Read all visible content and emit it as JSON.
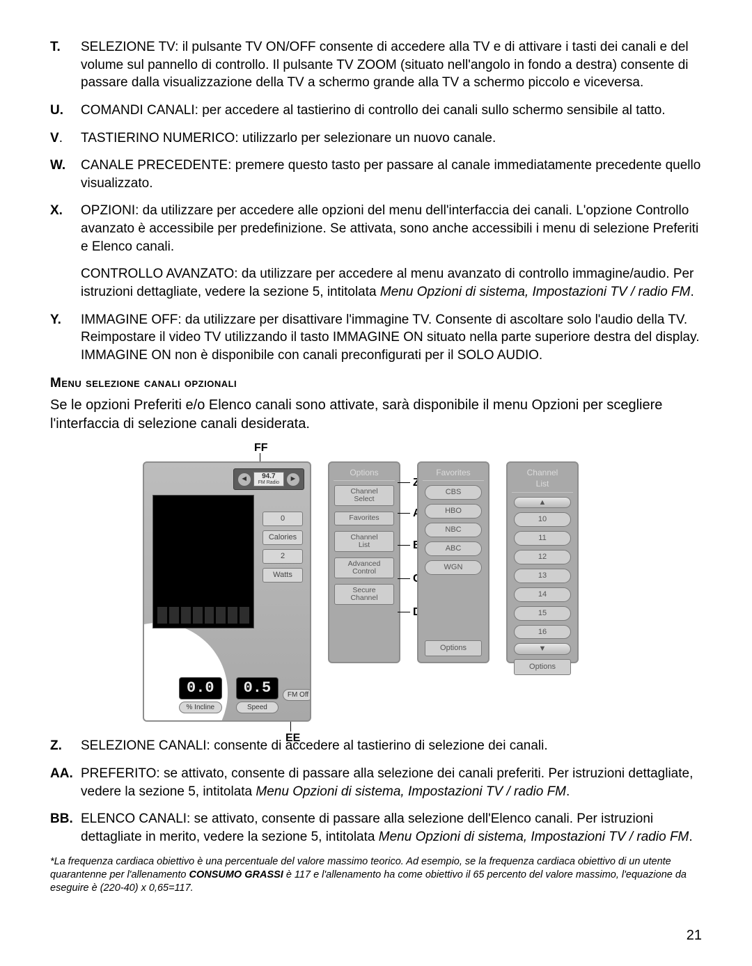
{
  "list_top": [
    {
      "letter": "T.",
      "paras": [
        {
          "t": "SELEZIONE TV: il pulsante TV ON/OFF consente di accedere alla TV e di attivare i tasti dei canali e del volume sul pannello di controllo. Il pulsante TV ZOOM (situato nell'angolo in fondo a destra) consente di passare dalla visualizzazione della TV a schermo grande alla TV a schermo piccolo e viceversa."
        }
      ]
    },
    {
      "letter": "U.",
      "paras": [
        {
          "t": "COMANDI CANALI: per accedere al tastierino di controllo dei canali sullo schermo sensibile al tatto."
        }
      ]
    },
    {
      "letter": "V.",
      "normal_dot": true,
      "paras": [
        {
          "t": "TASTIERINO NUMERICO: utilizzarlo per selezionare un nuovo canale."
        }
      ]
    },
    {
      "letter": "W.",
      "paras": [
        {
          "t": "CANALE PRECEDENTE: premere questo tasto per passare al canale immediatamente precedente quello visualizzato."
        }
      ]
    },
    {
      "letter": "X.",
      "paras": [
        {
          "t": "OPZIONI: da utilizzare per accedere alle opzioni del menu dell'interfaccia dei canali. L'opzione Controllo avanzato è accessibile per predefinizione. Se attivata, sono anche accessibili i menu di selezione Preferiti e Elenco canali."
        },
        {
          "t": "CONTROLLO AVANZATO: da utilizzare per accedere al menu avanzato di controllo immagine/audio. Per istruzioni dettagliate, vedere la sezione 5, intitolata ",
          "it": "Menu Opzioni di sistema, Impostazioni TV / radio FM",
          "tail": "."
        }
      ]
    },
    {
      "letter": "Y.",
      "paras": [
        {
          "t": "IMMAGINE OFF: da utilizzare per disattivare l'immagine TV. Consente di ascoltare solo l'audio della TV. Reimpostare il video TV utilizzando il tasto IMMAGINE ON situato nella parte superiore destra del display. IMMAGINE ON non è disponibile con canali preconfigurati per il SOLO AUDIO."
        }
      ]
    }
  ],
  "heading": "Menu selezione canali opzionali",
  "intro": "Se le opzioni Preferiti e/o Elenco canali sono attivate, sarà disponibile il menu Opzioni per scegliere l'interfaccia di selezione canali desiderata.",
  "callouts": {
    "FF": "FF",
    "EE": "EE",
    "Z": "Z",
    "AA": "AA",
    "BB": "BB",
    "CC": "CC",
    "DD": "DD"
  },
  "console": {
    "freq": "94.7",
    "freq_sub": "FM Radio",
    "side": [
      "0",
      "Calories",
      "2",
      "Watts"
    ],
    "incline": "0.0",
    "incline_lbl": "% Incline",
    "speed": "0.5",
    "speed_lbl": "Speed",
    "fm_off": "FM Off"
  },
  "options_panel": {
    "title": "Options",
    "items": [
      "Channel\nSelect",
      "Favorites",
      "Channel\nList",
      "Advanced\nControl",
      "Secure\nChannel"
    ]
  },
  "favorites_panel": {
    "title": "Favorites",
    "items": [
      "CBS",
      "HBO",
      "NBC",
      "ABC",
      "WGN"
    ],
    "bottom": "Options"
  },
  "channel_list_panel": {
    "title": "Channel List",
    "items": [
      "10",
      "11",
      "12",
      "13",
      "14",
      "15",
      "16"
    ],
    "bottom": "Options"
  },
  "list_bottom": [
    {
      "letter": "Z.",
      "paras": [
        {
          "t": "SELEZIONE CANALI: consente di accedere al tastierino di selezione dei canali."
        }
      ]
    },
    {
      "letter": "AA.",
      "paras": [
        {
          "t": "PREFERITO: se attivato, consente di passare alla selezione dei canali preferiti. Per istruzioni dettagliate, vedere la sezione 5, intitolata ",
          "it": "Menu Opzioni di sistema, Impostazioni TV / radio FM",
          "tail": "."
        }
      ]
    },
    {
      "letter": "BB.",
      "paras": [
        {
          "t": "ELENCO CANALI: se attivato, consente di passare alla selezione dell'Elenco canali. Per istruzioni dettagliate in merito, vedere la sezione 5, intitolata ",
          "it": "Menu Opzioni di sistema, Impostazioni TV / radio FM",
          "tail": "."
        }
      ]
    }
  ],
  "footnote": {
    "pre": "*La frequenza cardiaca obiettivo è una percentuale del valore massimo teorico. Ad esempio, se la frequenza cardiaca obiettivo di un utente quarantenne per l'allenamento ",
    "bold": "CONSUMO GRASSI",
    "post": " è 117 e l'allenamento ha come obiettivo il 65 percento del valore massimo, l'equazione da eseguire è (220-40) x 0,65=117."
  },
  "page": "21"
}
